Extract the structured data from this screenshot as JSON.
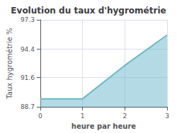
{
  "chart_data": {
    "type": "area",
    "title": "Evolution du taux d'hygrométrie",
    "xlabel": "heure par heure",
    "ylabel": "Taux hygrométrie %",
    "x": [
      0,
      1,
      2,
      3
    ],
    "values": [
      89.5,
      89.5,
      92.8,
      95.8
    ],
    "color": "#6ab8cc",
    "xlim": [
      0,
      3
    ],
    "ylim": [
      88.7,
      97.3
    ],
    "xticks": [
      0,
      1,
      2,
      3
    ],
    "yticks": [
      88.7,
      91.6,
      94.4,
      97.3
    ],
    "grid": true
  }
}
